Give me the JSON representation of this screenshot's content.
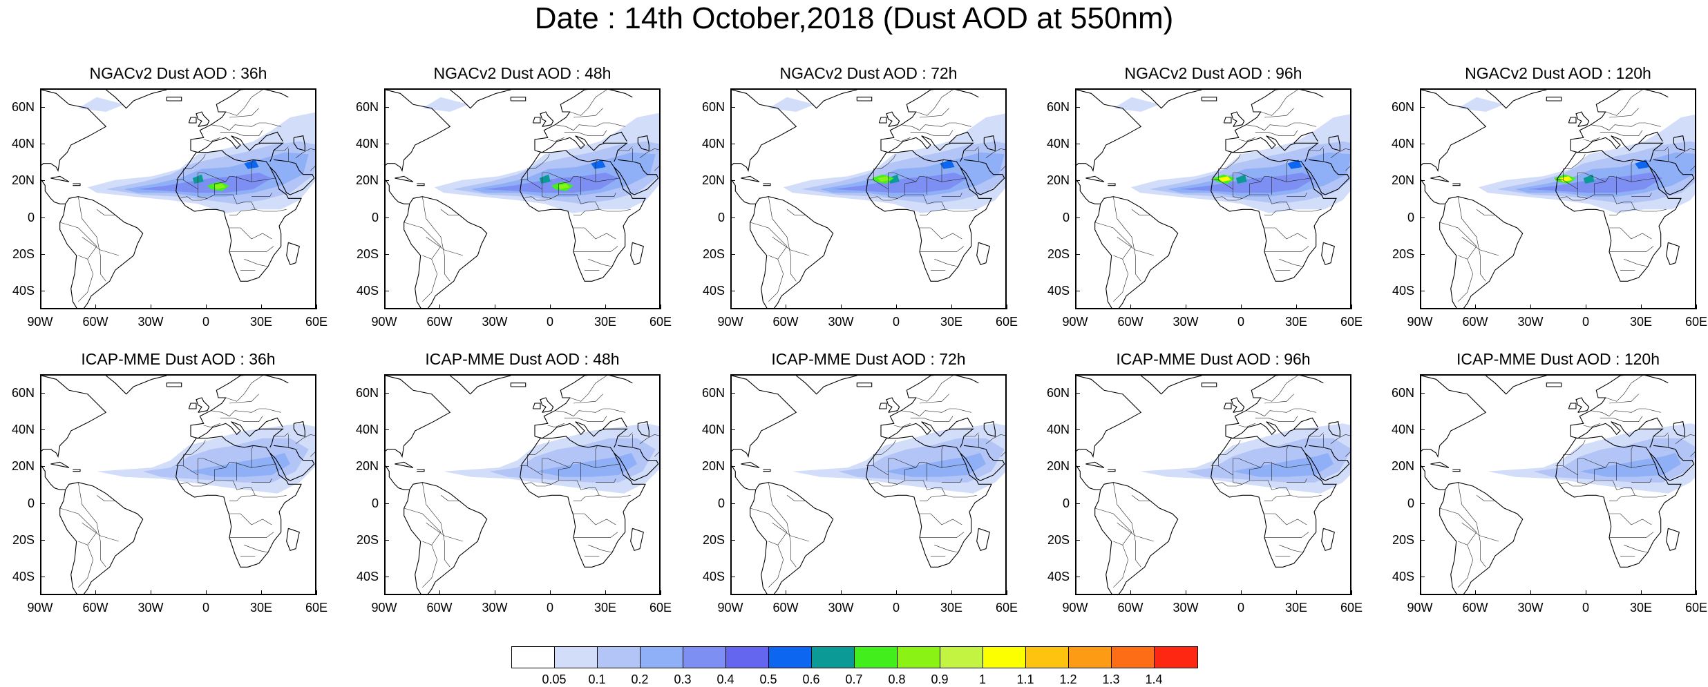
{
  "title": "Date : 14th October,2018 (Dust AOD at 550nm)",
  "panels": [
    {
      "title": "NGACv2 Dust AOD : 36h",
      "model": "NGACv2",
      "lead": "36h",
      "max_aod": 0.9
    },
    {
      "title": "NGACv2 Dust AOD : 48h",
      "model": "NGACv2",
      "lead": "48h",
      "max_aod": 0.9
    },
    {
      "title": "NGACv2 Dust AOD : 72h",
      "model": "NGACv2",
      "lead": "72h",
      "max_aod": 0.9
    },
    {
      "title": "NGACv2 Dust AOD : 96h",
      "model": "NGACv2",
      "lead": "96h",
      "max_aod": 1.1
    },
    {
      "title": "NGACv2 Dust AOD : 120h",
      "model": "NGACv2",
      "lead": "120h",
      "max_aod": 1.1
    },
    {
      "title": "ICAP-MME Dust AOD : 36h",
      "model": "ICAP-MME",
      "lead": "36h",
      "max_aod": 0.4
    },
    {
      "title": "ICAP-MME Dust AOD : 48h",
      "model": "ICAP-MME",
      "lead": "48h",
      "max_aod": 0.4
    },
    {
      "title": "ICAP-MME Dust AOD : 72h",
      "model": "ICAP-MME",
      "lead": "72h",
      "max_aod": 0.4
    },
    {
      "title": "ICAP-MME Dust AOD : 96h",
      "model": "ICAP-MME",
      "lead": "96h",
      "max_aod": 0.5
    },
    {
      "title": "ICAP-MME Dust AOD : 120h",
      "model": "ICAP-MME",
      "lead": "120h",
      "max_aod": 0.5
    }
  ],
  "axes": {
    "lat_ticks": [
      "60N",
      "40N",
      "20N",
      "0",
      "20S",
      "40S"
    ],
    "lat_values": [
      60,
      40,
      20,
      0,
      -20,
      -40
    ],
    "lon_ticks": [
      "90W",
      "60W",
      "30W",
      "0",
      "30E",
      "60E"
    ],
    "lon_values": [
      -90,
      -60,
      -30,
      0,
      30,
      60
    ],
    "lat_range": [
      -50,
      70
    ],
    "lon_range": [
      -90,
      60
    ]
  },
  "colorbar": {
    "labels": [
      "0.05",
      "0.1",
      "0.2",
      "0.3",
      "0.4",
      "0.5",
      "0.6",
      "0.7",
      "0.8",
      "0.9",
      "1",
      "1.1",
      "1.2",
      "1.3",
      "1.4"
    ],
    "colors": [
      "#ffffff",
      "#d2ddf9",
      "#b3c4f6",
      "#8fb0f7",
      "#7e8ff4",
      "#6466ef",
      "#0c66f0",
      "#0c9a96",
      "#42ee1c",
      "#8af214",
      "#c3f442",
      "#fbff00",
      "#fdc30e",
      "#fd9b15",
      "#fc6d16",
      "#fd2712"
    ]
  }
}
